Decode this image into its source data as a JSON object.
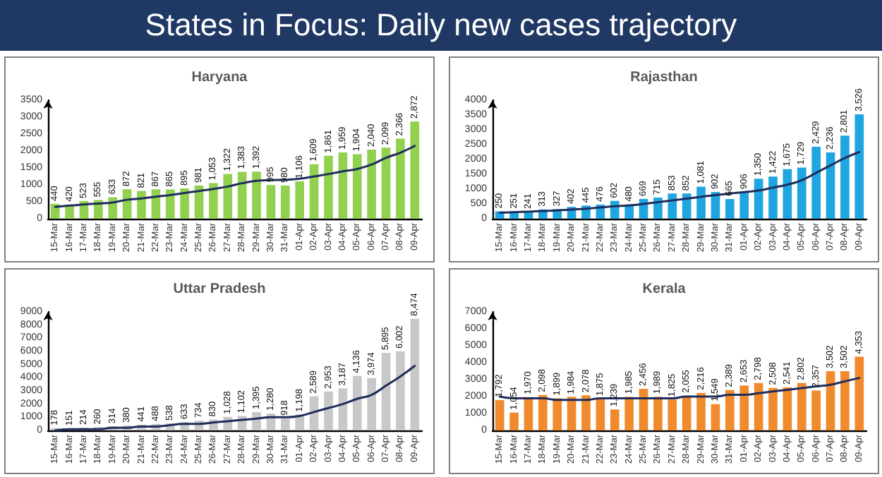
{
  "chart_data": [
    {
      "type": "other",
      "title": "States in Focus: Daily new cases trajectory"
    },
    {
      "type": "bar",
      "title": "Haryana",
      "categories": [
        "15-Mar",
        "16-Mar",
        "17-Mar",
        "18-Mar",
        "19-Mar",
        "20-Mar",
        "21-Mar",
        "22-Mar",
        "23-Mar",
        "24-Mar",
        "25-Mar",
        "26-Mar",
        "27-Mar",
        "28-Mar",
        "29-Mar",
        "30-Mar",
        "31-Mar",
        "01-Apr",
        "02-Apr",
        "03-Apr",
        "04-Apr",
        "05-Apr",
        "06-Apr",
        "07-Apr",
        "08-Apr",
        "09-Apr"
      ],
      "ylim": [
        0,
        3500
      ],
      "yticks": [
        0,
        500,
        1000,
        1500,
        2000,
        2500,
        3000,
        3500
      ],
      "series": [
        {
          "color": "#92d050",
          "values": [
            440,
            420,
            523,
            555,
            633,
            872,
            821,
            867,
            865,
            895,
            981,
            1053,
            1322,
            1383,
            1392,
            995,
            980,
            1106,
            1609,
            1861,
            1959,
            1904,
            2040,
            2099,
            2366,
            2872
          ],
          "value_labels": [
            "440",
            "420",
            "523",
            "555",
            "633",
            "872",
            "821",
            "867",
            "865",
            "895",
            "981",
            "1,053",
            "1,322",
            "1,383",
            "1,392",
            "995",
            "980",
            "1,106",
            "1,609",
            "1,861",
            "1,959",
            "1,904",
            "2,040",
            "2,099",
            "2,366",
            "2,872"
          ]
        },
        {
          "type": "line",
          "color": "#1f2d5c",
          "values": [
            350,
            390,
            420,
            450,
            480,
            560,
            600,
            650,
            700,
            760,
            820,
            880,
            950,
            1050,
            1120,
            1140,
            1150,
            1180,
            1250,
            1320,
            1400,
            1470,
            1600,
            1800,
            1950,
            2150
          ]
        }
      ]
    },
    {
      "type": "bar",
      "title": "Rajasthan",
      "categories": [
        "15-Mar",
        "16-Mar",
        "17-Mar",
        "18-Mar",
        "19-Mar",
        "20-Mar",
        "21-Mar",
        "22-Mar",
        "23-Mar",
        "24-Mar",
        "25-Mar",
        "26-Mar",
        "27-Mar",
        "28-Mar",
        "29-Mar",
        "30-Mar",
        "31-Mar",
        "01-Apr",
        "02-Apr",
        "03-Apr",
        "04-Apr",
        "05-Apr",
        "06-Apr",
        "07-Apr",
        "08-Apr",
        "09-Apr"
      ],
      "ylim": [
        0,
        4000
      ],
      "yticks": [
        0,
        500,
        1000,
        1500,
        2000,
        2500,
        3000,
        3500,
        4000
      ],
      "series": [
        {
          "color": "#1fa5e0",
          "values": [
            250,
            251,
            241,
            313,
            327,
            402,
            445,
            476,
            602,
            480,
            669,
            715,
            853,
            852,
            1081,
            902,
            665,
            906,
            1350,
            1422,
            1675,
            1729,
            2429,
            2236,
            2801,
            3526
          ],
          "value_labels": [
            "250",
            "251",
            "241",
            "313",
            "327",
            "402",
            "445",
            "476",
            "602",
            "480",
            "669",
            "715",
            "853",
            "852",
            "1,081",
            "902",
            "665",
            "906",
            "1,350",
            "1,422",
            "1,675",
            "1,729",
            "2,429",
            "2,236",
            "2,801",
            "3,526"
          ]
        },
        {
          "type": "line",
          "color": "#1f2d5c",
          "values": [
            200,
            220,
            240,
            260,
            280,
            310,
            340,
            380,
            420,
            450,
            500,
            560,
            620,
            680,
            740,
            800,
            850,
            900,
            950,
            1050,
            1150,
            1300,
            1550,
            1800,
            2050,
            2250
          ]
        }
      ]
    },
    {
      "type": "bar",
      "title": "Uttar Pradesh",
      "categories": [
        "15-Mar",
        "16-Mar",
        "17-Mar",
        "18-Mar",
        "19-Mar",
        "20-Mar",
        "21-Mar",
        "22-Mar",
        "23-Mar",
        "24-Mar",
        "25-Mar",
        "26-Mar",
        "27-Mar",
        "28-Mar",
        "29-Mar",
        "30-Mar",
        "31-Mar",
        "01-Apr",
        "02-Apr",
        "03-Apr",
        "04-Apr",
        "05-Apr",
        "06-Apr",
        "07-Apr",
        "08-Apr",
        "09-Apr"
      ],
      "ylim": [
        0,
        9000
      ],
      "yticks": [
        0,
        1000,
        2000,
        3000,
        4000,
        5000,
        6000,
        7000,
        8000,
        9000
      ],
      "series": [
        {
          "color": "#c8c8c8",
          "values": [
            178,
            151,
            214,
            260,
            314,
            380,
            441,
            488,
            538,
            633,
            734,
            830,
            1028,
            1102,
            1395,
            1280,
            918,
            1198,
            2589,
            2953,
            3187,
            4136,
            3974,
            5895,
            6002,
            8474
          ],
          "value_labels": [
            "178",
            "151",
            "214",
            "260",
            "314",
            "380",
            "441",
            "488",
            "538",
            "633",
            "734",
            "830",
            "1,028",
            "1,102",
            "1,395",
            "1,280",
            "918",
            "1,198",
            "2,589",
            "2,953",
            "3,187",
            "4,136",
            "3,974",
            "5,895",
            "6,002",
            "8,474"
          ]
        },
        {
          "type": "line",
          "color": "#1f2d5c",
          "values": [
            0,
            100,
            100,
            100,
            200,
            200,
            300,
            300,
            400,
            500,
            500,
            600,
            700,
            800,
            900,
            1000,
            1000,
            1100,
            1400,
            1700,
            2000,
            2400,
            2700,
            3400,
            4100,
            4900
          ]
        }
      ]
    },
    {
      "type": "bar",
      "title": "Kerala",
      "categories": [
        "15-Mar",
        "16-Mar",
        "17-Mar",
        "18-Mar",
        "19-Mar",
        "20-Mar",
        "21-Mar",
        "22-Mar",
        "23-Mar",
        "24-Mar",
        "25-Mar",
        "26-Mar",
        "27-Mar",
        "28-Mar",
        "29-Mar",
        "30-Mar",
        "31-Mar",
        "01-Apr",
        "02-Apr",
        "03-Apr",
        "04-Apr",
        "05-Apr",
        "06-Apr",
        "07-Apr",
        "08-Apr",
        "09-Apr"
      ],
      "ylim": [
        0,
        7000
      ],
      "yticks": [
        0,
        1000,
        2000,
        3000,
        4000,
        5000,
        6000,
        7000
      ],
      "series": [
        {
          "color": "#f08a2c",
          "values": [
            1792,
            1054,
            1970,
            2098,
            1899,
            1984,
            2078,
            1875,
            1239,
            1985,
            2456,
            1989,
            1825,
            2055,
            2216,
            1549,
            2389,
            2653,
            2798,
            2508,
            2541,
            2802,
            2357,
            3502,
            3502,
            4353
          ],
          "value_labels": [
            "1,792",
            "1,054",
            "1,970",
            "2,098",
            "1,899",
            "1,984",
            "2,078",
            "1,875",
            "1,239",
            "1,985",
            "2,456",
            "1,989",
            "1,825",
            "2,055",
            "2,216",
            "1,549",
            "2,389",
            "2,653",
            "2,798",
            "2,508",
            "2,541",
            "2,802",
            "2,357",
            "3,502",
            "3,502",
            "4,353"
          ]
        },
        {
          "type": "line",
          "color": "#1f2d5c",
          "values": [
            2000,
            1900,
            1900,
            1900,
            1800,
            1800,
            1800,
            1900,
            1900,
            1900,
            1900,
            1900,
            1900,
            2000,
            2000,
            2000,
            2100,
            2100,
            2200,
            2300,
            2400,
            2500,
            2600,
            2700,
            2900,
            3100
          ]
        }
      ]
    }
  ]
}
